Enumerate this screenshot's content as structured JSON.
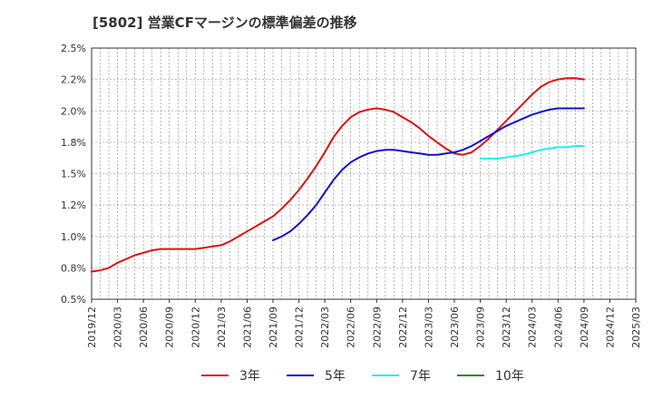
{
  "chart_data": {
    "type": "line",
    "title": "[5802]  営業CFマージンの標準偏差の推移",
    "xlabel": "",
    "ylabel": "",
    "ylim": [
      0.5,
      2.5
    ],
    "y_ticks": [
      "0.5%",
      "0.8%",
      "1.0%",
      "1.2%",
      "1.5%",
      "1.8%",
      "2.0%",
      "2.2%",
      "2.5%"
    ],
    "x_ticks": [
      "2019/12",
      "2020/03",
      "2020/06",
      "2020/09",
      "2020/12",
      "2021/03",
      "2021/06",
      "2021/09",
      "2021/12",
      "2022/03",
      "2022/06",
      "2022/09",
      "2022/12",
      "2023/03",
      "2023/06",
      "2023/09",
      "2023/12",
      "2024/03",
      "2024/06",
      "2024/09",
      "2024/12",
      "2025/03"
    ],
    "grid": true,
    "legend_position": "bottom",
    "series": [
      {
        "name": "3年",
        "color": "#dd1111",
        "points": [
          [
            "2019/12",
            0.72
          ],
          [
            "2020/01",
            0.73
          ],
          [
            "2020/02",
            0.75
          ],
          [
            "2020/03",
            0.79
          ],
          [
            "2020/04",
            0.82
          ],
          [
            "2020/05",
            0.85
          ],
          [
            "2020/06",
            0.87
          ],
          [
            "2020/07",
            0.89
          ],
          [
            "2020/08",
            0.9
          ],
          [
            "2020/09",
            0.9
          ],
          [
            "2020/10",
            0.9
          ],
          [
            "2020/11",
            0.9
          ],
          [
            "2020/12",
            0.9
          ],
          [
            "2021/01",
            0.91
          ],
          [
            "2021/02",
            0.92
          ],
          [
            "2021/03",
            0.93
          ],
          [
            "2021/04",
            0.96
          ],
          [
            "2021/05",
            1.0
          ],
          [
            "2021/06",
            1.04
          ],
          [
            "2021/07",
            1.08
          ],
          [
            "2021/08",
            1.12
          ],
          [
            "2021/09",
            1.16
          ],
          [
            "2021/10",
            1.22
          ],
          [
            "2021/11",
            1.29
          ],
          [
            "2021/12",
            1.37
          ],
          [
            "2022/01",
            1.46
          ],
          [
            "2022/02",
            1.56
          ],
          [
            "2022/03",
            1.67
          ],
          [
            "2022/04",
            1.79
          ],
          [
            "2022/05",
            1.88
          ],
          [
            "2022/06",
            1.95
          ],
          [
            "2022/07",
            1.99
          ],
          [
            "2022/08",
            2.01
          ],
          [
            "2022/09",
            2.02
          ],
          [
            "2022/10",
            2.01
          ],
          [
            "2022/11",
            1.99
          ],
          [
            "2022/12",
            1.95
          ],
          [
            "2023/01",
            1.91
          ],
          [
            "2023/02",
            1.86
          ],
          [
            "2023/03",
            1.8
          ],
          [
            "2023/04",
            1.75
          ],
          [
            "2023/05",
            1.7
          ],
          [
            "2023/06",
            1.66
          ],
          [
            "2023/07",
            1.65
          ],
          [
            "2023/08",
            1.67
          ],
          [
            "2023/09",
            1.72
          ],
          [
            "2023/10",
            1.78
          ],
          [
            "2023/11",
            1.85
          ],
          [
            "2023/12",
            1.92
          ],
          [
            "2024/01",
            1.99
          ],
          [
            "2024/02",
            2.06
          ],
          [
            "2024/03",
            2.13
          ],
          [
            "2024/04",
            2.19
          ],
          [
            "2024/05",
            2.23
          ],
          [
            "2024/06",
            2.25
          ],
          [
            "2024/07",
            2.26
          ],
          [
            "2024/08",
            2.26
          ],
          [
            "2024/09",
            2.25
          ]
        ]
      },
      {
        "name": "5年",
        "color": "#1111cc",
        "points": [
          [
            "2021/09",
            0.97
          ],
          [
            "2021/10",
            1.0
          ],
          [
            "2021/11",
            1.04
          ],
          [
            "2021/12",
            1.1
          ],
          [
            "2022/01",
            1.17
          ],
          [
            "2022/02",
            1.25
          ],
          [
            "2022/03",
            1.35
          ],
          [
            "2022/04",
            1.45
          ],
          [
            "2022/05",
            1.53
          ],
          [
            "2022/06",
            1.59
          ],
          [
            "2022/07",
            1.63
          ],
          [
            "2022/08",
            1.66
          ],
          [
            "2022/09",
            1.68
          ],
          [
            "2022/10",
            1.69
          ],
          [
            "2022/11",
            1.69
          ],
          [
            "2022/12",
            1.68
          ],
          [
            "2023/01",
            1.67
          ],
          [
            "2023/02",
            1.66
          ],
          [
            "2023/03",
            1.65
          ],
          [
            "2023/04",
            1.65
          ],
          [
            "2023/05",
            1.66
          ],
          [
            "2023/06",
            1.67
          ],
          [
            "2023/07",
            1.69
          ],
          [
            "2023/08",
            1.72
          ],
          [
            "2023/09",
            1.76
          ],
          [
            "2023/10",
            1.8
          ],
          [
            "2023/11",
            1.84
          ],
          [
            "2023/12",
            1.88
          ],
          [
            "2024/01",
            1.91
          ],
          [
            "2024/02",
            1.94
          ],
          [
            "2024/03",
            1.97
          ],
          [
            "2024/04",
            1.99
          ],
          [
            "2024/05",
            2.01
          ],
          [
            "2024/06",
            2.02
          ],
          [
            "2024/07",
            2.02
          ],
          [
            "2024/08",
            2.02
          ],
          [
            "2024/09",
            2.02
          ]
        ]
      },
      {
        "name": "7年",
        "color": "#22eeee",
        "points": [
          [
            "2023/09",
            1.62
          ],
          [
            "2023/10",
            1.62
          ],
          [
            "2023/11",
            1.62
          ],
          [
            "2023/12",
            1.63
          ],
          [
            "2024/01",
            1.64
          ],
          [
            "2024/02",
            1.65
          ],
          [
            "2024/03",
            1.67
          ],
          [
            "2024/04",
            1.69
          ],
          [
            "2024/05",
            1.7
          ],
          [
            "2024/06",
            1.71
          ],
          [
            "2024/07",
            1.71
          ],
          [
            "2024/08",
            1.72
          ],
          [
            "2024/09",
            1.72
          ]
        ]
      },
      {
        "name": "10年",
        "color": "#228822",
        "points": []
      }
    ]
  }
}
